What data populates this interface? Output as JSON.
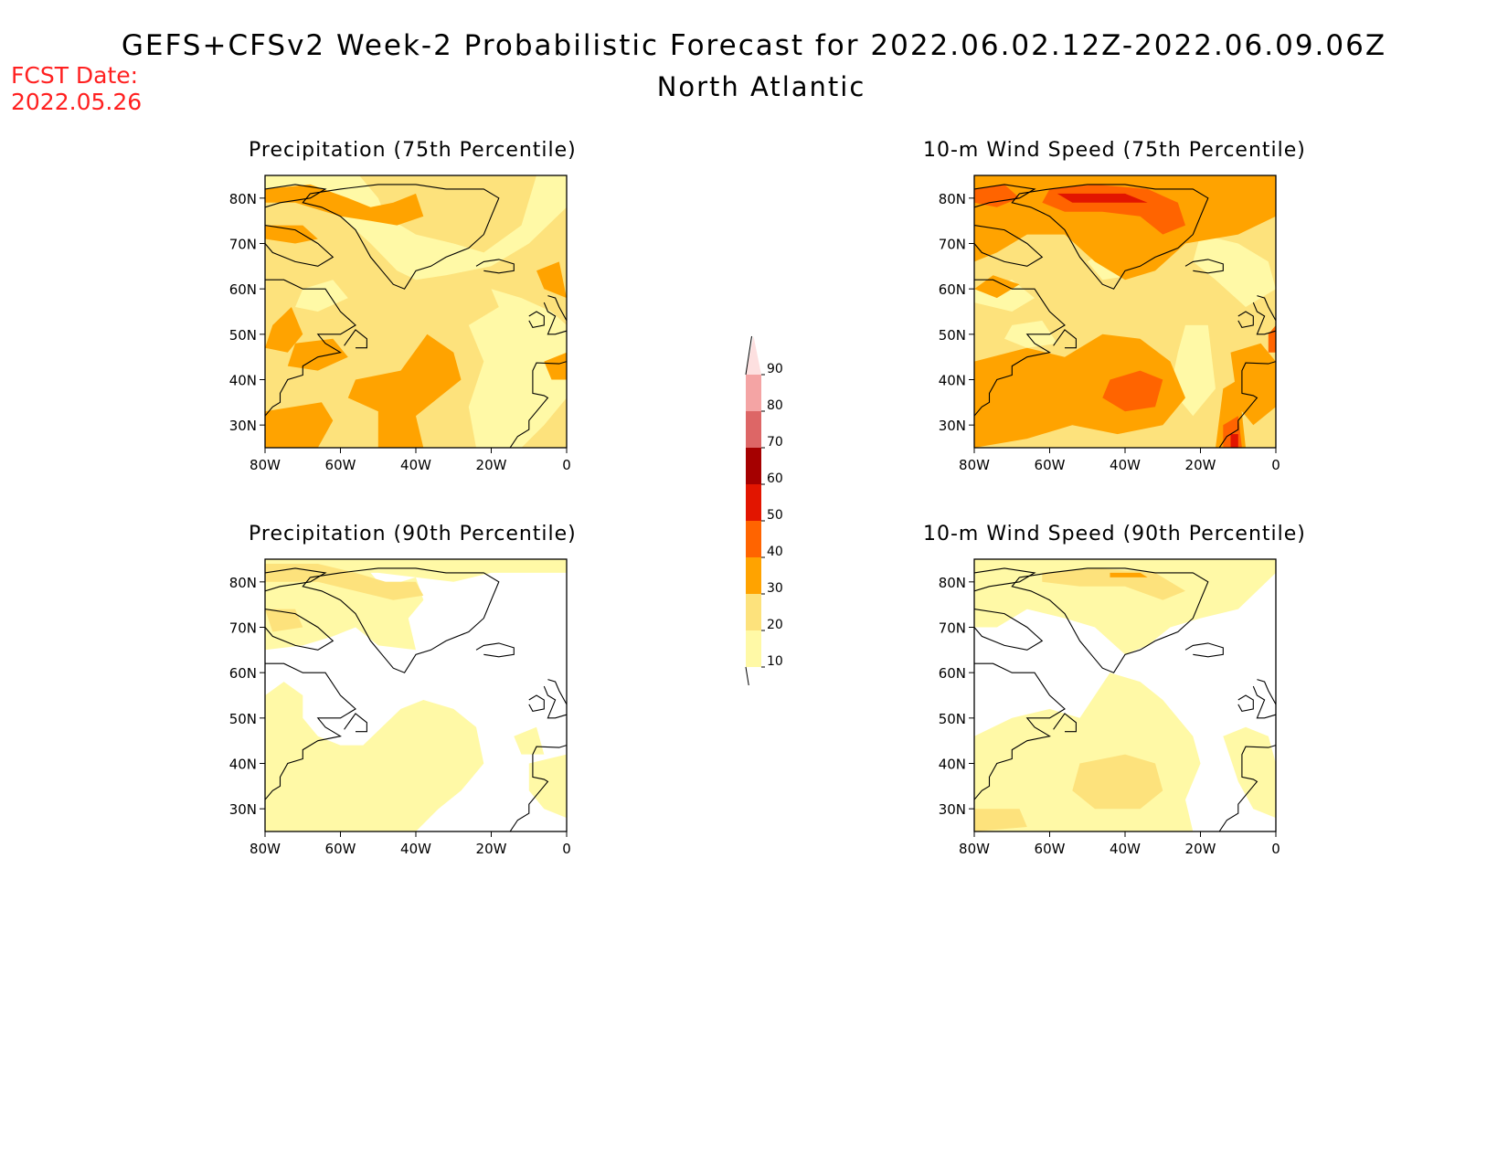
{
  "header": {
    "title": "GEFS+CFSv2 Week-2 Probabilistic Forecast for 2022.06.02.12Z-2022.06.09.06Z",
    "subtitle": "North Atlantic",
    "fcst_label": "FCST Date:",
    "fcst_date": "2022.05.26"
  },
  "panels": [
    {
      "title": "Precipitation (75th Percentile)",
      "field": "precip75"
    },
    {
      "title": "10-m Wind Speed (75th Percentile)",
      "field": "wind75"
    },
    {
      "title": "Precipitation (90th Percentile)",
      "field": "precip90"
    },
    {
      "title": "10-m Wind Speed (90th Percentile)",
      "field": "wind90"
    }
  ],
  "axes": {
    "lat_ticks": [
      "80N",
      "70N",
      "60N",
      "50N",
      "40N",
      "30N"
    ],
    "lon_ticks": [
      "80W",
      "60W",
      "40W",
      "20W",
      "0"
    ]
  },
  "colorbar": {
    "levels": [
      "10",
      "20",
      "30",
      "40",
      "50",
      "60",
      "70",
      "80",
      "90"
    ],
    "colors": [
      "#fff9a6",
      "#fde27c",
      "#ffa300",
      "#ff6400",
      "#e21500",
      "#a50000",
      "#dd6666",
      "#f4a4a4",
      "#fde0e0"
    ]
  }
}
